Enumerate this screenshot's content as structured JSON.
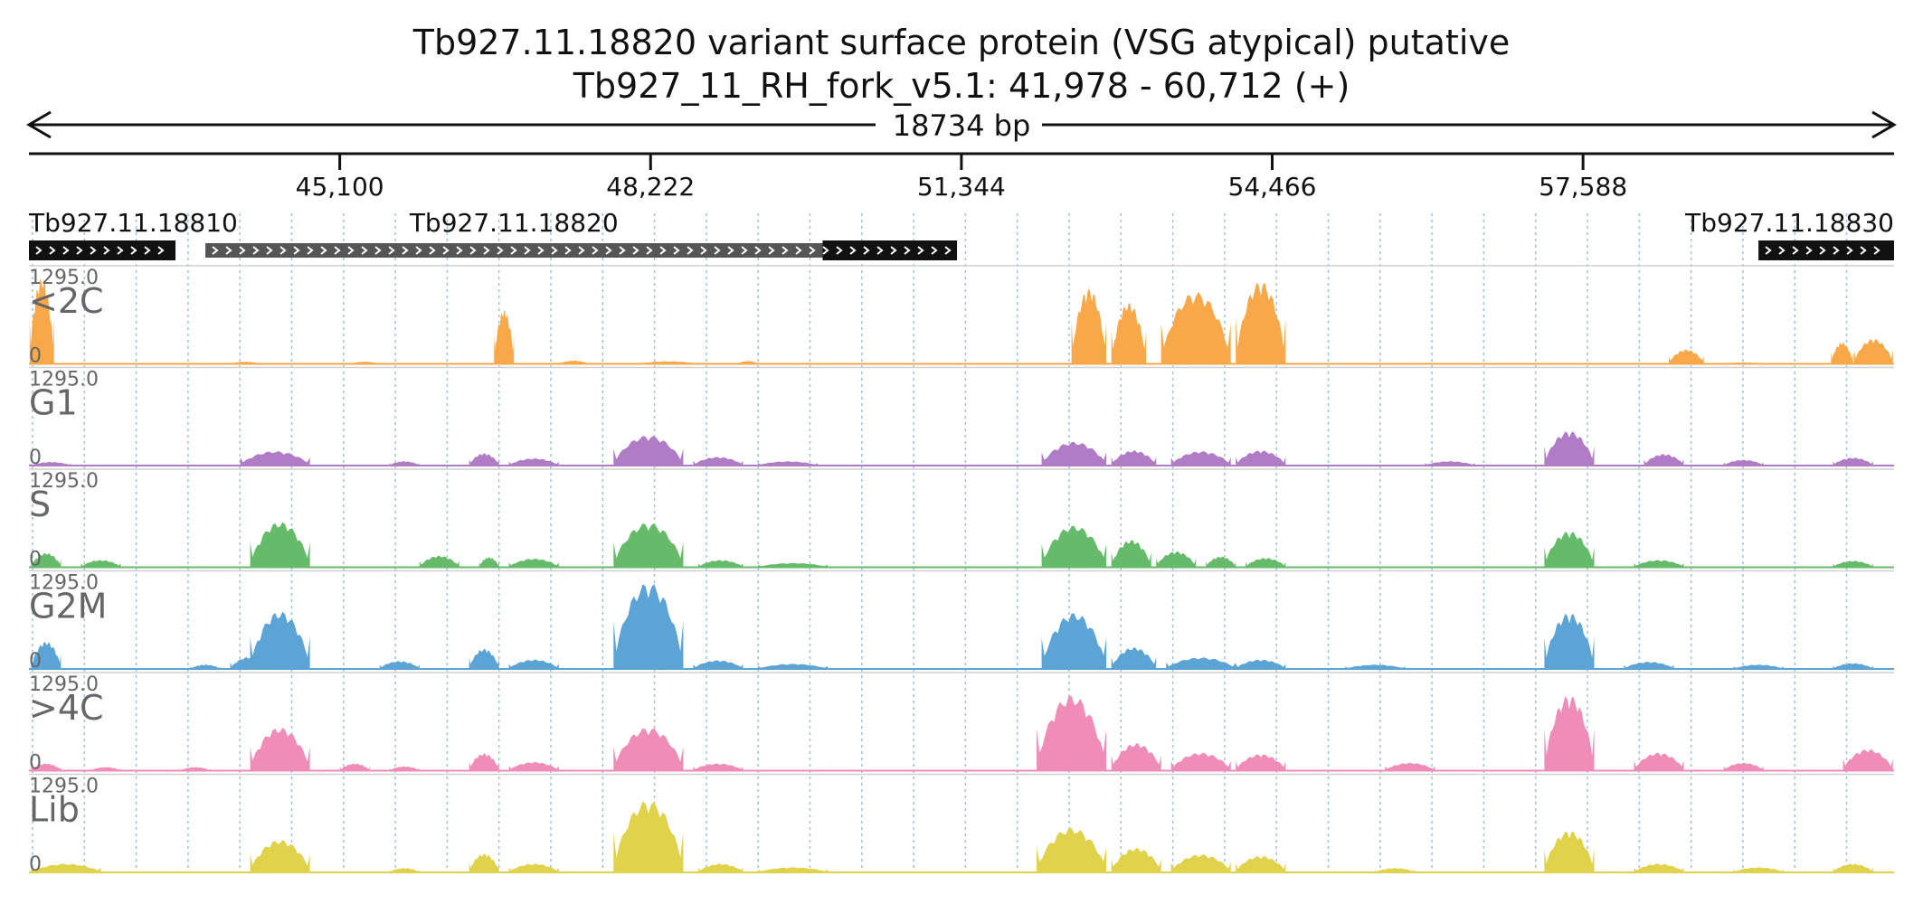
{
  "chart_data": {
    "type": "area",
    "title": "Tb927.11.18820  variant surface protein (VSG  atypical)  putative",
    "subtitle": "Tb927_11_RH_fork_v5.1: 41,978 - 60,712 (+)",
    "span_label": "18734 bp",
    "xlim": [
      41978,
      60712
    ],
    "x_ticks": [
      "45,100",
      "48,222",
      "51,344",
      "54,466",
      "57,588"
    ],
    "genes": [
      {
        "name": "Tb927.11.18810",
        "start": 41978,
        "end": 43450
      },
      {
        "name": "Tb927.11.18820",
        "start": 43750,
        "end": 51300,
        "cds_start": 49950
      },
      {
        "name": "Tb927.11.18830",
        "start": 59350,
        "end": 60712
      }
    ],
    "tracks": [
      {
        "name": "<2C",
        "max_label": "1295.0",
        "zero_label": "0",
        "color": "#f8a848",
        "peaks": [
          [
            41985,
            42230,
            1200
          ],
          [
            46650,
            46850,
            750
          ],
          [
            44000,
            44300,
            30
          ],
          [
            45200,
            45500,
            30
          ],
          [
            47300,
            47600,
            45
          ],
          [
            48100,
            48700,
            35
          ],
          [
            49100,
            49300,
            40
          ],
          [
            52450,
            52800,
            1050
          ],
          [
            52850,
            53200,
            850
          ],
          [
            53350,
            54050,
            1000
          ],
          [
            54100,
            54600,
            1150
          ],
          [
            58450,
            58800,
            200
          ],
          [
            60080,
            60300,
            300
          ],
          [
            60310,
            60700,
            350
          ],
          [
            59000,
            59400,
            20
          ]
        ]
      },
      {
        "name": "G1",
        "max_label": "1295.0",
        "zero_label": "0",
        "color": "#b07cc6",
        "peaks": [
          [
            42000,
            42400,
            50
          ],
          [
            44100,
            44800,
            200
          ],
          [
            45600,
            45900,
            60
          ],
          [
            46400,
            46700,
            170
          ],
          [
            46800,
            47300,
            100
          ],
          [
            47850,
            48550,
            420
          ],
          [
            48650,
            49150,
            120
          ],
          [
            49300,
            49900,
            60
          ],
          [
            52150,
            52800,
            330
          ],
          [
            52850,
            53300,
            210
          ],
          [
            53450,
            54050,
            200
          ],
          [
            54100,
            54600,
            210
          ],
          [
            56000,
            56500,
            60
          ],
          [
            57200,
            57700,
            480
          ],
          [
            58200,
            58600,
            160
          ],
          [
            59000,
            59400,
            80
          ],
          [
            60100,
            60500,
            110
          ]
        ]
      },
      {
        "name": "S",
        "max_label": "1295.0",
        "zero_label": "0",
        "color": "#66bb6a",
        "peaks": [
          [
            42000,
            42300,
            200
          ],
          [
            42500,
            42900,
            100
          ],
          [
            44200,
            44800,
            630
          ],
          [
            45900,
            46300,
            160
          ],
          [
            46500,
            46700,
            140
          ],
          [
            46800,
            47300,
            120
          ],
          [
            47850,
            48550,
            620
          ],
          [
            48700,
            49150,
            100
          ],
          [
            49300,
            50000,
            60
          ],
          [
            52150,
            52800,
            580
          ],
          [
            52850,
            53250,
            380
          ],
          [
            53300,
            53700,
            220
          ],
          [
            53800,
            54100,
            150
          ],
          [
            54200,
            54600,
            130
          ],
          [
            57200,
            57700,
            500
          ],
          [
            58100,
            58600,
            100
          ],
          [
            60100,
            60500,
            90
          ]
        ]
      },
      {
        "name": "G2M",
        "max_label": "1295.0",
        "zero_label": "0",
        "color": "#5ca4d6",
        "peaks": [
          [
            42000,
            42300,
            380
          ],
          [
            43600,
            43900,
            60
          ],
          [
            44000,
            44400,
            170
          ],
          [
            44200,
            44800,
            800
          ],
          [
            45500,
            45900,
            110
          ],
          [
            46400,
            46700,
            280
          ],
          [
            46800,
            47300,
            130
          ],
          [
            47850,
            48550,
            1200
          ],
          [
            48650,
            49150,
            120
          ],
          [
            49300,
            50000,
            70
          ],
          [
            52150,
            52800,
            780
          ],
          [
            52850,
            53300,
            300
          ],
          [
            53400,
            54100,
            160
          ],
          [
            54100,
            54600,
            130
          ],
          [
            55200,
            55800,
            60
          ],
          [
            57200,
            57700,
            780
          ],
          [
            58000,
            58500,
            100
          ],
          [
            59100,
            59600,
            60
          ],
          [
            60100,
            60500,
            80
          ]
        ]
      },
      {
        "name": ">4C",
        "max_label": "1295.0",
        "zero_label": "0",
        "color": "#f08cb8",
        "peaks": [
          [
            42000,
            42300,
            100
          ],
          [
            42600,
            42900,
            50
          ],
          [
            43500,
            43800,
            50
          ],
          [
            44300,
            44700,
            330
          ],
          [
            44200,
            44800,
            600
          ],
          [
            45100,
            45400,
            100
          ],
          [
            45600,
            45900,
            60
          ],
          [
            46400,
            46700,
            240
          ],
          [
            46800,
            47300,
            120
          ],
          [
            47850,
            48550,
            600
          ],
          [
            48650,
            49150,
            100
          ],
          [
            52100,
            52800,
            1050
          ],
          [
            52850,
            53350,
            380
          ],
          [
            53450,
            54050,
            250
          ],
          [
            54100,
            54600,
            230
          ],
          [
            55600,
            56100,
            110
          ],
          [
            57200,
            57700,
            1050
          ],
          [
            58100,
            58600,
            250
          ],
          [
            59000,
            59400,
            110
          ],
          [
            60200,
            60700,
            300
          ]
        ]
      },
      {
        "name": "Lib",
        "max_label": "1295.0",
        "zero_label": "0",
        "color": "#e0d24a",
        "peaks": [
          [
            42000,
            42700,
            120
          ],
          [
            44200,
            44800,
            450
          ],
          [
            45600,
            45900,
            60
          ],
          [
            46400,
            46700,
            260
          ],
          [
            46800,
            47300,
            120
          ],
          [
            47850,
            48550,
            1000
          ],
          [
            48700,
            49150,
            120
          ],
          [
            49300,
            50000,
            70
          ],
          [
            52100,
            52800,
            620
          ],
          [
            52850,
            53350,
            340
          ],
          [
            53450,
            54050,
            250
          ],
          [
            54100,
            54600,
            230
          ],
          [
            55500,
            55900,
            60
          ],
          [
            57200,
            57700,
            580
          ],
          [
            58100,
            58600,
            120
          ],
          [
            59100,
            59600,
            70
          ],
          [
            60100,
            60500,
            120
          ]
        ]
      }
    ]
  }
}
